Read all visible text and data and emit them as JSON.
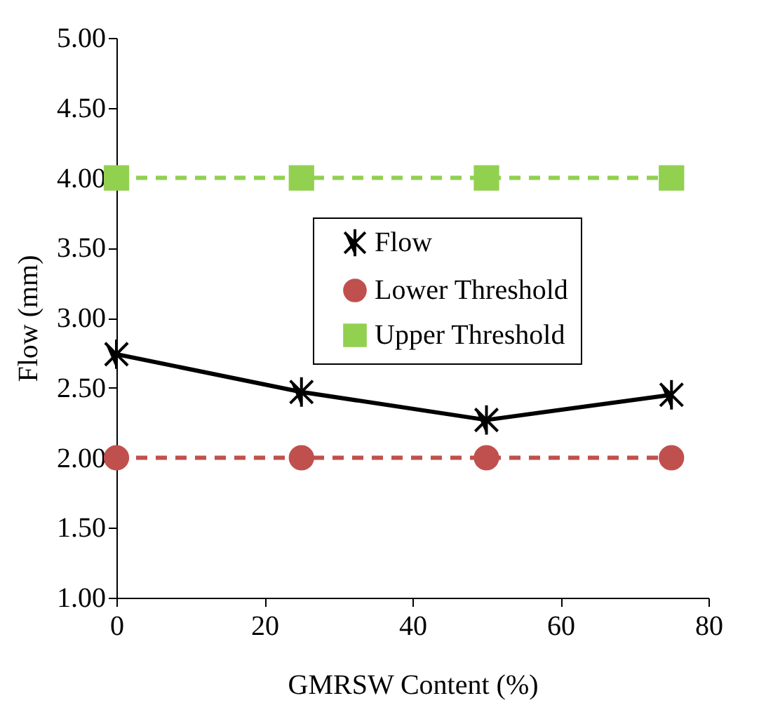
{
  "chart_data": {
    "type": "line",
    "xlabel": "GMRSW Content (%)",
    "ylabel": "Flow (mm)",
    "x": [
      0,
      25,
      50,
      75
    ],
    "xlim": [
      0,
      80
    ],
    "xticks": [
      0,
      20,
      40,
      60,
      80
    ],
    "ylim": [
      1,
      5
    ],
    "yticks": [
      {
        "value": 1,
        "label": "1.00"
      },
      {
        "value": 1.5,
        "label": "1.50"
      },
      {
        "value": 2,
        "label": "2.00"
      },
      {
        "value": 2.5,
        "label": "2.50"
      },
      {
        "value": 3,
        "label": "3.00"
      },
      {
        "value": 3.5,
        "label": "3.50"
      },
      {
        "value": 4,
        "label": "4.00"
      },
      {
        "value": 4.5,
        "label": "4.50"
      },
      {
        "value": 5,
        "label": "5.00"
      }
    ],
    "legend": "right",
    "grid": false,
    "series": [
      {
        "name": "Flow",
        "color": "#000000",
        "values": [
          2.74,
          2.47,
          2.27,
          2.45
        ],
        "marker": "cross",
        "line_style": "solid"
      },
      {
        "name": "Lower Threshold",
        "color": "#c0504d",
        "values": [
          2,
          2,
          2,
          2
        ],
        "marker": "circle",
        "line_style": "dashed"
      },
      {
        "name": "Upper Threshold",
        "color": "#92d050",
        "values": [
          4,
          4,
          4,
          4
        ],
        "marker": "square",
        "line_style": "dashed"
      }
    ]
  }
}
